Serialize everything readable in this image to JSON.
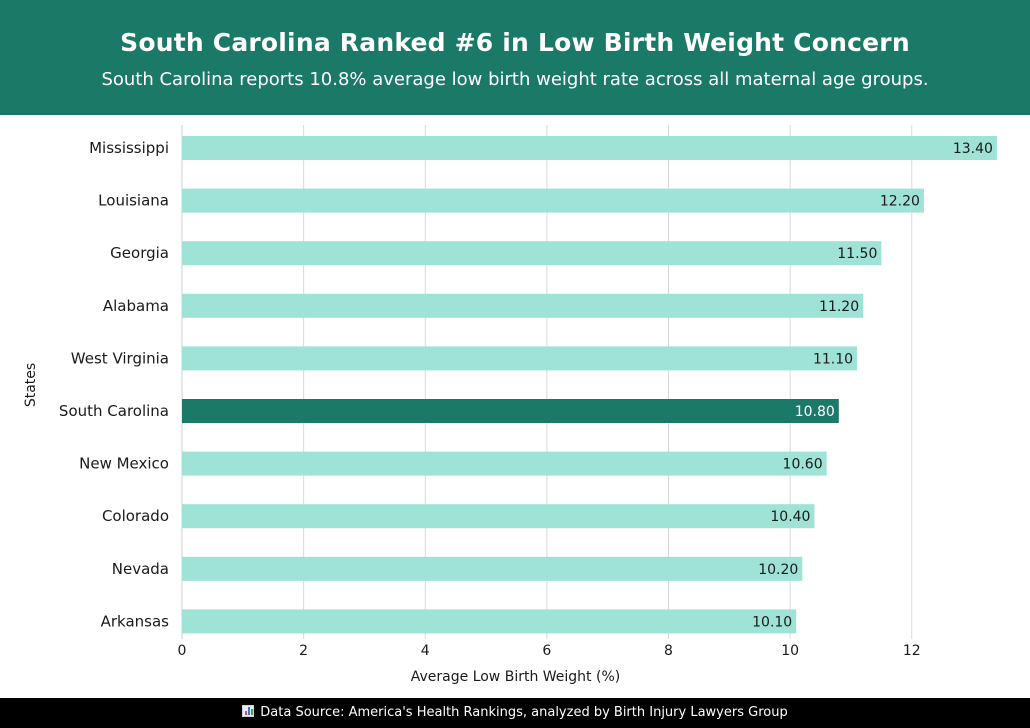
{
  "header": {
    "title": "South Carolina Ranked #6 in Low Birth Weight Concern",
    "subtitle": "South Carolina reports 10.8% average low birth weight rate across all maternal age groups."
  },
  "footer": {
    "icon": "bar-chart-icon",
    "text": "Data Source: America's Health Rankings, analyzed by Birth Injury Lawyers Group"
  },
  "colors": {
    "header_bg": "#1a7a67",
    "bar": "#9ee3d6",
    "highlight_bar": "#1a7a67",
    "footer_bg": "#000000"
  },
  "chart_data": {
    "type": "bar",
    "orientation": "horizontal",
    "categories": [
      "Mississippi",
      "Louisiana",
      "Georgia",
      "Alabama",
      "West Virginia",
      "South Carolina",
      "New Mexico",
      "Colorado",
      "Nevada",
      "Arkansas"
    ],
    "values": [
      13.4,
      12.2,
      11.5,
      11.2,
      11.1,
      10.8,
      10.6,
      10.4,
      10.2,
      10.1
    ],
    "value_labels": [
      "13.40",
      "12.20",
      "11.50",
      "11.20",
      "11.10",
      "10.80",
      "10.60",
      "10.40",
      "10.20",
      "10.10"
    ],
    "highlight": "South Carolina",
    "xlabel": "Average Low Birth Weight (%)",
    "ylabel": "States",
    "xlim": [
      0,
      13.5
    ],
    "xticks": [
      0,
      2,
      4,
      6,
      8,
      10,
      12
    ],
    "grid": true
  }
}
